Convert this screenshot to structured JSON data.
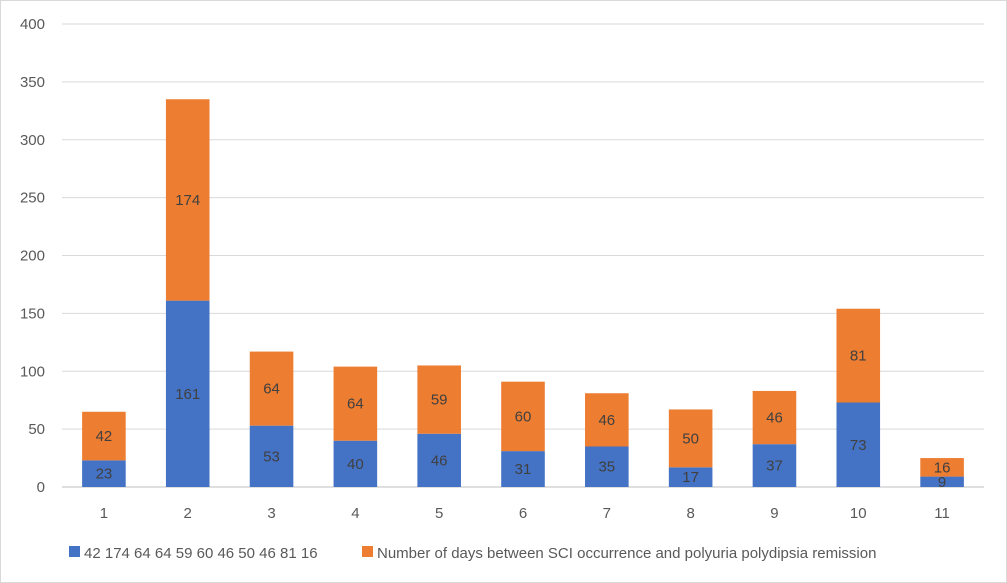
{
  "chart_data": {
    "type": "bar",
    "stacked": true,
    "categories": [
      "1",
      "2",
      "3",
      "4",
      "5",
      "6",
      "7",
      "8",
      "9",
      "10",
      "11"
    ],
    "series": [
      {
        "name": "42 174 64 64 59 60 46 50 46 81 16",
        "color": "#4472c4",
        "values": [
          23,
          161,
          53,
          40,
          46,
          31,
          35,
          17,
          37,
          73,
          9
        ]
      },
      {
        "name": "Number of days between SCI occurrence and polyuria polydipsia remission",
        "color": "#ed7d31",
        "values": [
          42,
          174,
          64,
          64,
          59,
          60,
          46,
          50,
          46,
          81,
          16
        ]
      }
    ],
    "ylim": [
      0,
      400
    ],
    "yticks": [
      0,
      50,
      100,
      150,
      200,
      250,
      300,
      350,
      400
    ],
    "grid": true,
    "legend": "bottom",
    "data_labels": true,
    "title": "",
    "xlabel": "",
    "ylabel": ""
  }
}
